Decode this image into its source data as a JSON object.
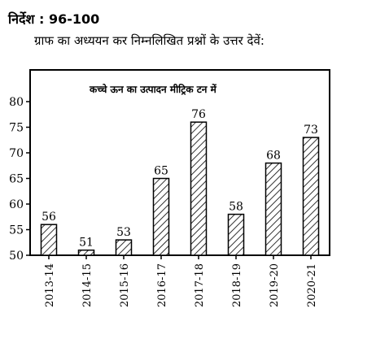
{
  "heading": "निर्देश : 96-100",
  "instruction": "ग्राफ का अध्ययन कर निम्नलिखित प्रश्नों के उत्तर देवें:",
  "chart_data": {
    "type": "bar",
    "title": "कच्चे ऊन का उत्पादन मीट्रिक टन में",
    "categories": [
      "2013-14",
      "2014-15",
      "2015-16",
      "2016-17",
      "2017-18",
      "2018-19",
      "2019-20",
      "2020-21"
    ],
    "values": [
      56,
      51,
      53,
      65,
      76,
      58,
      68,
      73
    ],
    "ylim": [
      50,
      85
    ],
    "yticks": [
      50,
      55,
      60,
      65,
      70,
      75,
      80
    ],
    "bar_style": "diagonal-hatch",
    "grid": false,
    "legend": "none"
  }
}
